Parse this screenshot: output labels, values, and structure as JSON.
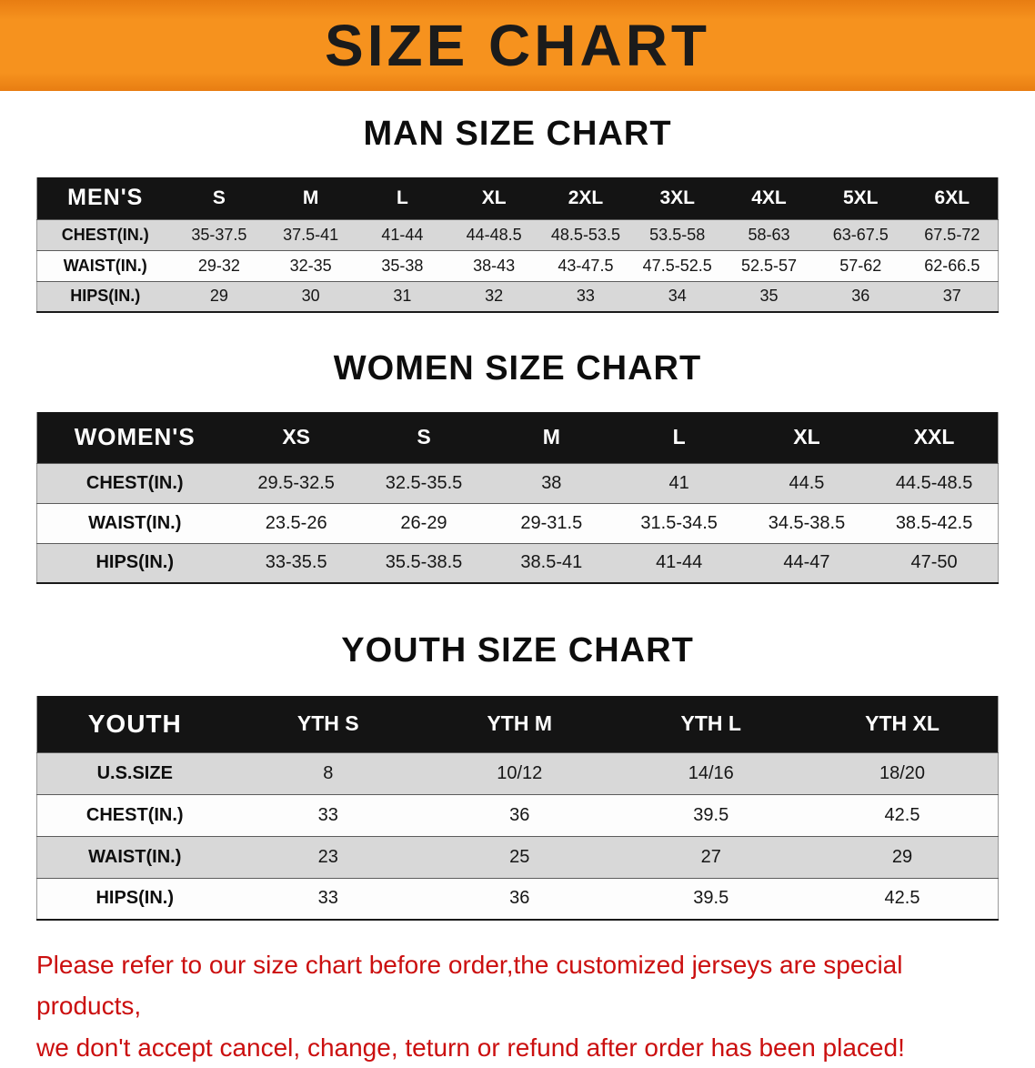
{
  "banner": {
    "title": "SIZE CHART"
  },
  "colors": {
    "banner_bg": "#f6921e",
    "banner_bg_dark": "#e87d12",
    "header_row_bg": "#141414",
    "stripe_row_bg": "#d8d8d8",
    "disclaimer_text": "#cb0f0f"
  },
  "sections": [
    {
      "id": "men",
      "heading": "MAN SIZE CHART",
      "table": {
        "header": [
          "MEN'S",
          "S",
          "M",
          "L",
          "XL",
          "2XL",
          "3XL",
          "4XL",
          "5XL",
          "6XL"
        ],
        "rows": [
          [
            "CHEST(IN.)",
            "35-37.5",
            "37.5-41",
            "41-44",
            "44-48.5",
            "48.5-53.5",
            "53.5-58",
            "58-63",
            "63-67.5",
            "67.5-72"
          ],
          [
            "WAIST(IN.)",
            "29-32",
            "32-35",
            "35-38",
            "38-43",
            "43-47.5",
            "47.5-52.5",
            "52.5-57",
            "57-62",
            "62-66.5"
          ],
          [
            "HIPS(IN.)",
            "29",
            "30",
            "31",
            "32",
            "33",
            "34",
            "35",
            "36",
            "37"
          ]
        ]
      }
    },
    {
      "id": "women",
      "heading": "WOMEN SIZE CHART",
      "table": {
        "header": [
          "WOMEN'S",
          "XS",
          "S",
          "M",
          "L",
          "XL",
          "XXL"
        ],
        "rows": [
          [
            "CHEST(IN.)",
            "29.5-32.5",
            "32.5-35.5",
            "38",
            "41",
            "44.5",
            "44.5-48.5"
          ],
          [
            "WAIST(IN.)",
            "23.5-26",
            "26-29",
            "29-31.5",
            "31.5-34.5",
            "34.5-38.5",
            "38.5-42.5"
          ],
          [
            "HIPS(IN.)",
            "33-35.5",
            "35.5-38.5",
            "38.5-41",
            "41-44",
            "44-47",
            "47-50"
          ]
        ]
      }
    },
    {
      "id": "youth",
      "heading": "YOUTH SIZE CHART",
      "table": {
        "header": [
          "YOUTH",
          "YTH S",
          "YTH M",
          "YTH L",
          "YTH XL"
        ],
        "rows": [
          [
            "U.S.SIZE",
            "8",
            "10/12",
            "14/16",
            "18/20"
          ],
          [
            "CHEST(IN.)",
            "33",
            "36",
            "39.5",
            "42.5"
          ],
          [
            "WAIST(IN.)",
            "23",
            "25",
            "27",
            "29"
          ],
          [
            "HIPS(IN.)",
            "33",
            "36",
            "39.5",
            "42.5"
          ]
        ]
      }
    }
  ],
  "disclaimer": {
    "lines": [
      "Please refer to our size chart before order,the customized jerseys are special products,",
      "we don't accept cancel, change, teturn or refund after order has been placed!"
    ]
  }
}
